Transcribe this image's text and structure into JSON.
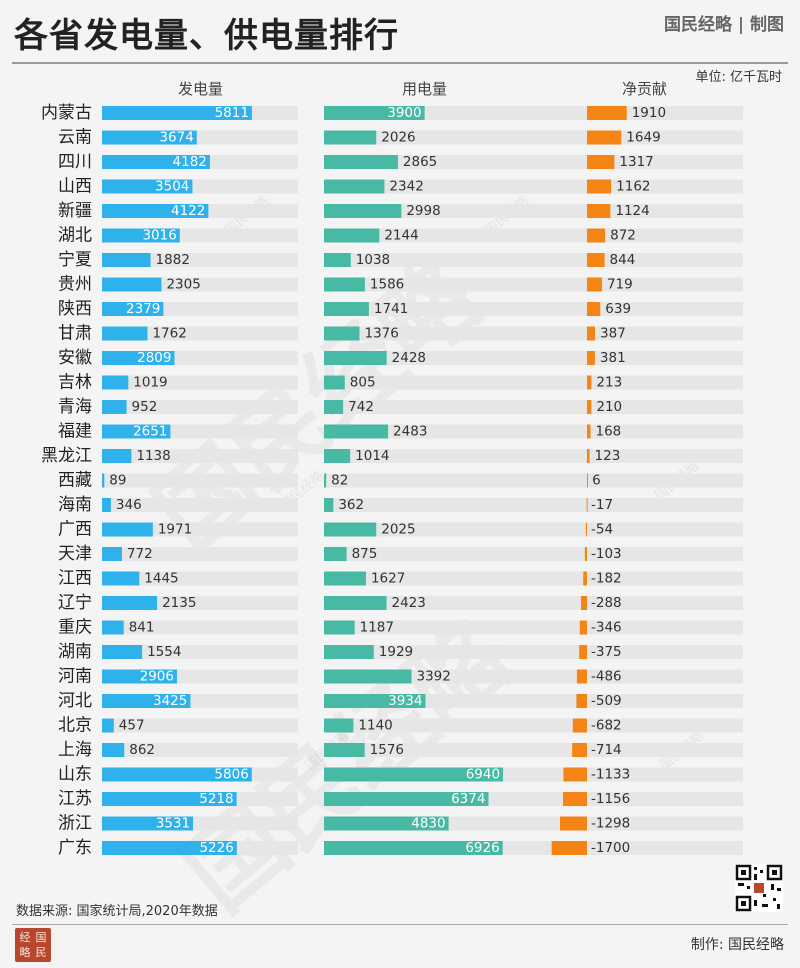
{
  "title": "各省发电量、供电量排行",
  "brand": "国民经略 | 制图",
  "unit": "单位: 亿千瓦时",
  "source": "数据来源: 国家统计局,2020年数据",
  "maker": "制作: 国民经略",
  "watermark": "国民经略",
  "seal_text": [
    "经",
    "国",
    "略",
    "民"
  ],
  "colors": {
    "generation": "#2fb2ec",
    "consumption": "#48b9a4",
    "net": "#f48515",
    "track": "#e6e6e6",
    "seal": "#b8472e"
  },
  "chart_data": {
    "type": "bar",
    "title": "各省发电量、供电量排行",
    "categories": [
      "内蒙古",
      "云南",
      "四川",
      "山西",
      "新疆",
      "湖北",
      "宁夏",
      "贵州",
      "陕西",
      "甘肃",
      "安徽",
      "吉林",
      "青海",
      "福建",
      "黑龙江",
      "西藏",
      "海南",
      "广西",
      "天津",
      "江西",
      "辽宁",
      "重庆",
      "湖南",
      "河南",
      "河北",
      "北京",
      "上海",
      "山东",
      "江苏",
      "浙江",
      "广东"
    ],
    "series": [
      {
        "name": "发电量",
        "values": [
          5811,
          3674,
          4182,
          3504,
          4122,
          3016,
          1882,
          2305,
          2379,
          1762,
          2809,
          1019,
          952,
          2651,
          1138,
          89,
          346,
          1971,
          772,
          1445,
          2135,
          841,
          1554,
          2906,
          3425,
          457,
          862,
          5806,
          5218,
          3531,
          5226
        ]
      },
      {
        "name": "用电量",
        "values": [
          3900,
          2026,
          2865,
          2342,
          2998,
          2144,
          1038,
          1586,
          1741,
          1376,
          2428,
          805,
          742,
          2483,
          1014,
          82,
          362,
          2025,
          875,
          1627,
          2423,
          1187,
          1929,
          3392,
          3934,
          1140,
          1576,
          6940,
          6374,
          4830,
          6926
        ]
      },
      {
        "name": "净贡献",
        "values": [
          1910,
          1649,
          1317,
          1162,
          1124,
          872,
          844,
          719,
          639,
          387,
          381,
          213,
          210,
          168,
          123,
          6,
          -17,
          -54,
          -103,
          -182,
          -288,
          -346,
          -375,
          -486,
          -509,
          -682,
          -714,
          -1133,
          -1156,
          -1298,
          -1700
        ]
      }
    ]
  }
}
